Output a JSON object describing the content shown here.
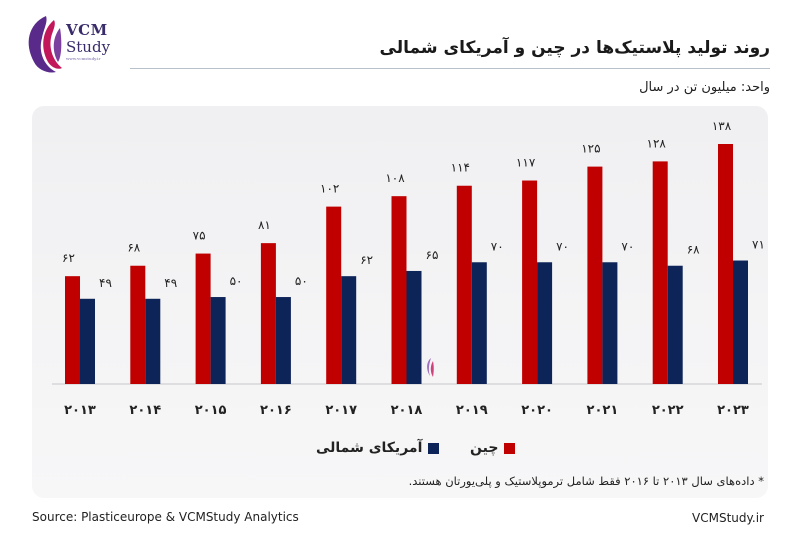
{
  "branding": {
    "logo_main": "VCM",
    "logo_sub": "Study",
    "logo_url": "www.vcmstudy.ir",
    "site": "VCMStudy.ir",
    "logo_color": "#3a2c6b",
    "logo_accent": "#c2185b"
  },
  "title": "روند تولید پلاستیک‌ها در چین و آمریکای شمالی",
  "unit": "واحد: میلیون تن در سال",
  "footnote": "* داده‌های سال ۲۰۱۳ تا ۲۰۱۶ فقط شامل ترموپلاستیک و پلی‌یورتان هستند.",
  "source": "Source: Plasticeurope & VCMStudy Analytics",
  "legend": {
    "china": "چین",
    "north_america": "آمریکای شمالی"
  },
  "colors": {
    "china": "#c00000",
    "north_america": "#0d2458",
    "panel": "#f2f2f4"
  },
  "chart_data": {
    "type": "bar",
    "title": "روند تولید پلاستیک‌ها در چین و آمریکای شمالی",
    "ylabel": "",
    "xlabel": "",
    "categories": [
      "۲۰۱۳",
      "۲۰۱۴",
      "۲۰۱۵",
      "۲۰۱۶",
      "۲۰۱۷",
      "۲۰۱۸",
      "۲۰۱۹",
      "۲۰۲۰",
      "۲۰۲۱",
      "۲۰۲۲",
      "۲۰۲۳"
    ],
    "series": [
      {
        "name": "چین",
        "values": [
          62,
          68,
          75,
          81,
          102,
          108,
          114,
          117,
          125,
          128,
          138
        ],
        "labels": [
          "۶۲",
          "۶۸",
          "۷۵",
          "۸۱",
          "۱۰۲",
          "۱۰۸",
          "۱۱۴",
          "۱۱۷",
          "۱۲۵",
          "۱۲۸",
          "۱۳۸"
        ]
      },
      {
        "name": "آمریکای شمالی",
        "values": [
          49,
          49,
          50,
          50,
          62,
          65,
          70,
          70,
          70,
          68,
          71
        ],
        "labels": [
          "۴۹",
          "۴۹",
          "۵۰",
          "۵۰",
          "۶۲",
          "۶۵",
          "۷۰",
          "۷۰",
          "۷۰",
          "۶۸",
          "۷۱"
        ]
      }
    ],
    "ylim": [
      0,
      138
    ],
    "grid": false,
    "legend_position": "bottom-center"
  }
}
